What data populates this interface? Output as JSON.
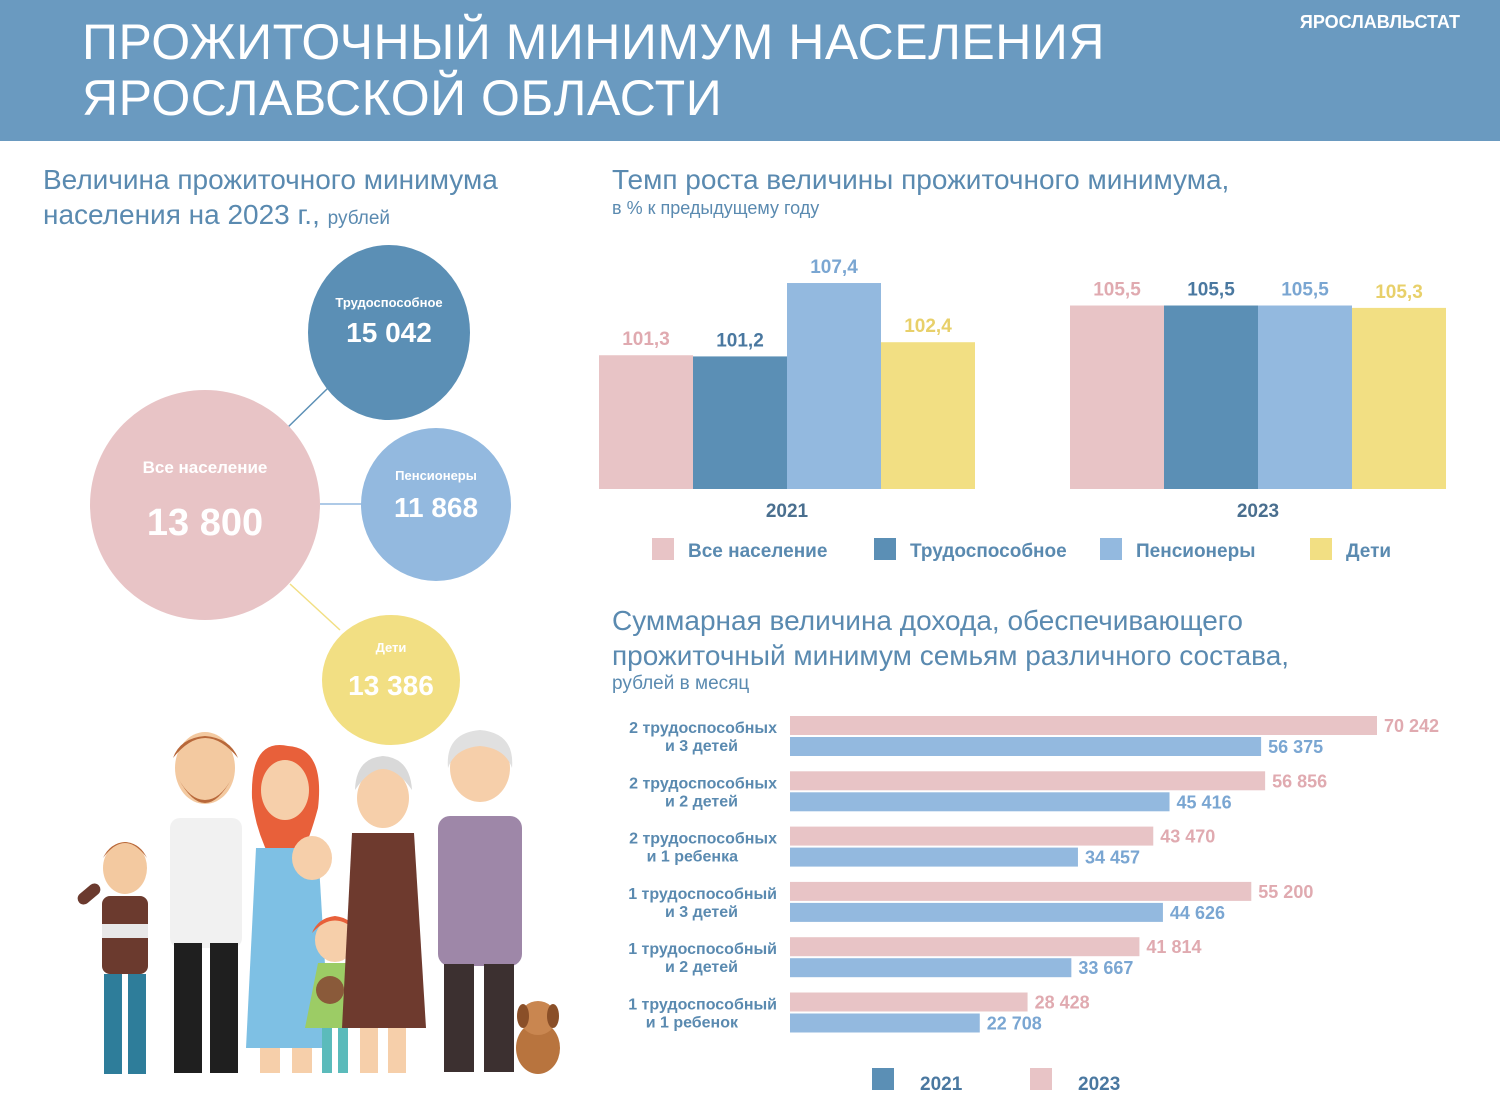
{
  "header": {
    "title": "ПРОЖИТОЧНЫЙ МИНИМУМ НАСЕЛЕНИЯ\nЯРОСЛАВСКОЙ ОБЛАСТИ",
    "org": "ЯРОСЛАВЛЬСТАТ"
  },
  "left": {
    "title": "Величина прожиточного минимума населения на 2023 г.,",
    "unit": "рублей",
    "circles": {
      "all": {
        "label": "Все население",
        "value": "13 800"
      },
      "working": {
        "label": "Трудоспособное",
        "value": "15 042"
      },
      "pensioners": {
        "label": "Пенсионеры",
        "value": "11 868"
      },
      "children": {
        "label": "Дети",
        "value": "13 386"
      }
    }
  },
  "growth": {
    "title": "Темп роста величины прожиточного минимума,",
    "subtitle": "в % к предыдущему  году"
  },
  "income": {
    "title": "Суммарная величина дохода, обеспечивающего прожиточный минимум семьям различного состава,",
    "subtitle": "рублей в месяц"
  },
  "colors": {
    "pink": "#e8c4c6",
    "steel": "#5b8fb5",
    "lightblue": "#93b9df",
    "yellow": "#f2df83",
    "header": "#6a9ac0",
    "text": "#5a8ab0"
  },
  "chart_data": [
    {
      "type": "bar",
      "title": "Темп роста величины прожиточного минимума, в % к предыдущему  году",
      "categories": [
        "2021",
        "2023"
      ],
      "series": [
        {
          "name": "Все население",
          "values": [
            101.3,
            105.5
          ],
          "labels": [
            "101,3",
            "105,5"
          ],
          "color": "#e8c4c6",
          "label_color": "#e0aab0"
        },
        {
          "name": "Трудоспособное",
          "values": [
            101.2,
            105.5
          ],
          "labels": [
            "101,2",
            "105,5"
          ],
          "color": "#5b8fb5",
          "label_color": "#4a78a0"
        },
        {
          "name": "Пенсионеры",
          "values": [
            107.4,
            105.5
          ],
          "labels": [
            "107,4",
            "105,5"
          ],
          "color": "#93b9df",
          "label_color": "#7aa6d2"
        },
        {
          "name": "Дети",
          "values": [
            102.4,
            105.3
          ],
          "labels": [
            "102,4",
            "105,3"
          ],
          "color": "#f2df83",
          "label_color": "#e8d06a"
        }
      ],
      "ylim": [
        90,
        108.5
      ],
      "grid": false,
      "legend": "bottom"
    },
    {
      "type": "bar",
      "orientation": "horizontal",
      "title": "Суммарная величина дохода, обеспечивающего прожиточный минимум семьям различного состава, рублей в месяц",
      "categories": [
        [
          "2 трудоспособных",
          "и 3 детей"
        ],
        [
          "2 трудоспособных",
          "и 2 детей"
        ],
        [
          "2 трудоспособных",
          "и 1 ребенка"
        ],
        [
          "1 трудоспособный",
          "и 3 детей"
        ],
        [
          "1 трудоспособный",
          "и 2 детей"
        ],
        [
          "1 трудоспособный",
          "и 1 ребенок"
        ]
      ],
      "series": [
        {
          "name": "2023",
          "values": [
            70242,
            56856,
            43470,
            55200,
            41814,
            28428
          ],
          "labels": [
            "70 242",
            "56 856",
            "43 470",
            "55 200",
            "41 814",
            "28 428"
          ],
          "color": "#e8c4c6",
          "label_color": "#e0aab0"
        },
        {
          "name": "2021",
          "values": [
            56375,
            45416,
            34457,
            44626,
            33667,
            22708
          ],
          "labels": [
            "56 375",
            "45 416",
            "34 457",
            "44 626",
            "33 667",
            "22 708"
          ],
          "color": "#93b9df",
          "label_color": "#7aa6d2"
        }
      ],
      "legend_items": [
        {
          "name": "2021",
          "color": "#5b8fb5"
        },
        {
          "name": "2023",
          "color": "#e8c4c6"
        }
      ],
      "xlim": [
        0,
        70242
      ],
      "grid": false,
      "legend": "bottom"
    }
  ]
}
